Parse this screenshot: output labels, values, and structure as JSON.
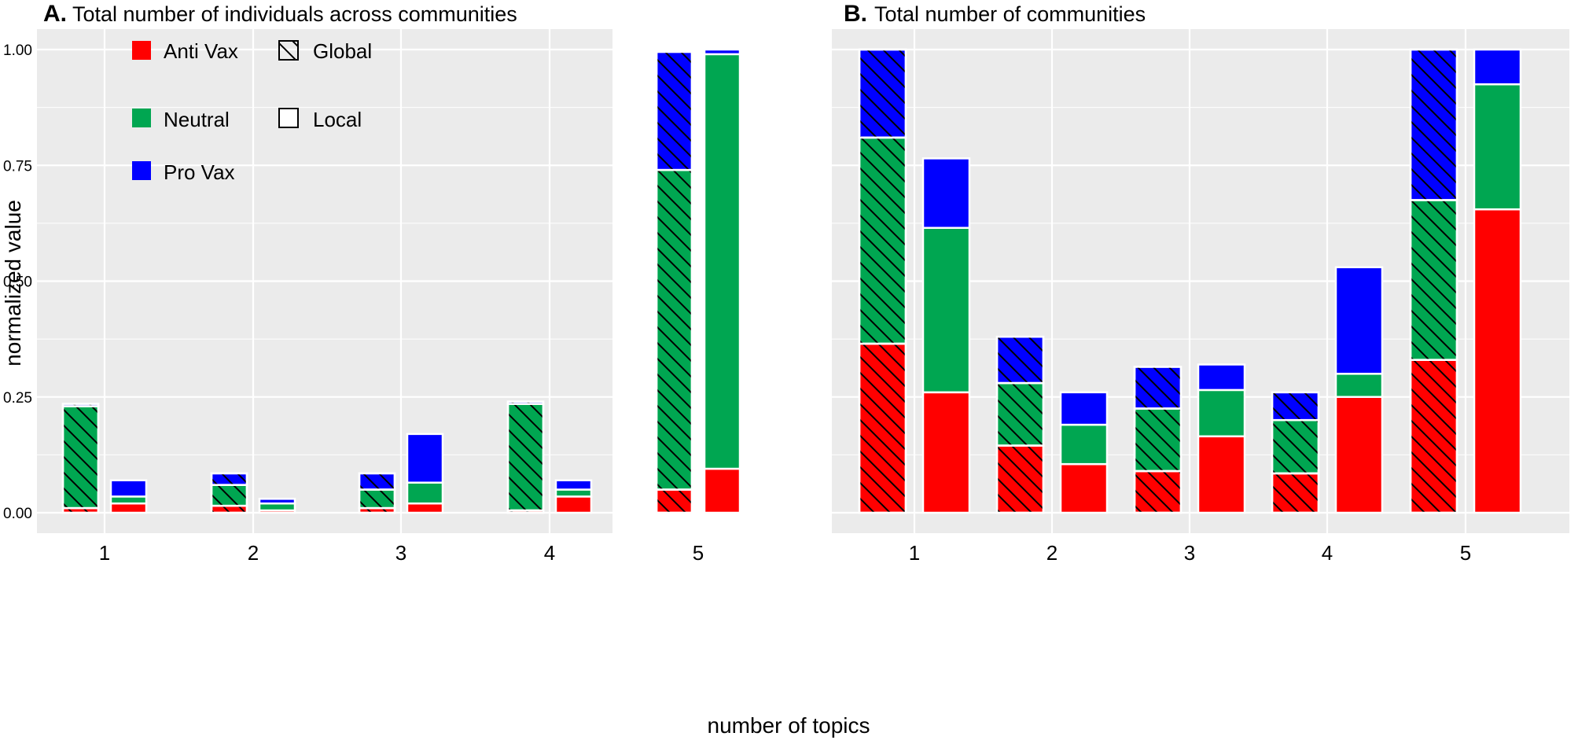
{
  "chart_data": [
    {
      "type": "bar",
      "panel_label": "A.",
      "title": "Total number of individuals across communities",
      "categories": [
        "1",
        "2",
        "3",
        "4",
        "5"
      ],
      "groups": [
        "Global",
        "Local"
      ],
      "stack_order": [
        "Anti Vax",
        "Neutral",
        "Pro Vax"
      ],
      "series": [
        {
          "name": "Anti Vax",
          "group": "Global",
          "values": [
            0.01,
            0.015,
            0.01,
            0.005,
            0.05
          ]
        },
        {
          "name": "Neutral",
          "group": "Global",
          "values": [
            0.22,
            0.045,
            0.04,
            0.23,
            0.69
          ]
        },
        {
          "name": "Pro Vax",
          "group": "Global",
          "values": [
            0.005,
            0.025,
            0.035,
            0.005,
            0.255
          ]
        },
        {
          "name": "Anti Vax",
          "group": "Local",
          "values": [
            0.02,
            0.005,
            0.02,
            0.035,
            0.095
          ]
        },
        {
          "name": "Neutral",
          "group": "Local",
          "values": [
            0.015,
            0.015,
            0.045,
            0.015,
            0.895
          ]
        },
        {
          "name": "Pro Vax",
          "group": "Local",
          "values": [
            0.035,
            0.01,
            0.105,
            0.02,
            0.01
          ]
        }
      ],
      "ylim": [
        0,
        1.05
      ],
      "yticks": [
        "0.00",
        "0.25",
        "0.50",
        "0.75",
        "1.00"
      ],
      "grid": true,
      "legend": {
        "colors": [
          {
            "label": "Anti Vax",
            "color": "#ff0000"
          },
          {
            "label": "Neutral",
            "color": "#00a651"
          },
          {
            "label": "Pro Vax",
            "color": "#0000ff"
          }
        ],
        "patterns": [
          {
            "label": "Global",
            "pattern": "hatched"
          },
          {
            "label": "Local",
            "pattern": "none"
          }
        ],
        "placement": "top-left"
      }
    },
    {
      "type": "bar",
      "panel_label": "B.",
      "title": "Total number of communities",
      "categories": [
        "1",
        "2",
        "3",
        "4",
        "5"
      ],
      "groups": [
        "Global",
        "Local"
      ],
      "stack_order": [
        "Anti Vax",
        "Neutral",
        "Pro Vax"
      ],
      "series": [
        {
          "name": "Anti Vax",
          "group": "Global",
          "values": [
            0.365,
            0.145,
            0.09,
            0.085,
            0.33
          ]
        },
        {
          "name": "Neutral",
          "group": "Global",
          "values": [
            0.445,
            0.135,
            0.135,
            0.115,
            0.345
          ]
        },
        {
          "name": "Pro Vax",
          "group": "Global",
          "values": [
            0.19,
            0.1,
            0.09,
            0.06,
            0.325
          ]
        },
        {
          "name": "Anti Vax",
          "group": "Local",
          "values": [
            0.26,
            0.105,
            0.165,
            0.25,
            0.655
          ]
        },
        {
          "name": "Neutral",
          "group": "Local",
          "values": [
            0.355,
            0.085,
            0.1,
            0.05,
            0.27
          ]
        },
        {
          "name": "Pro Vax",
          "group": "Local",
          "values": [
            0.15,
            0.07,
            0.055,
            0.23,
            0.075
          ]
        }
      ],
      "ylim": [
        0,
        1.05
      ],
      "grid": true
    }
  ],
  "axes": {
    "xlabel": "number of topics",
    "ylabel": "normalized value"
  },
  "colors": {
    "Anti Vax": "#ff0000",
    "Neutral": "#00a651",
    "Pro Vax": "#0000ff",
    "panel_background": "#ebebeb",
    "grid": "#ffffff"
  }
}
